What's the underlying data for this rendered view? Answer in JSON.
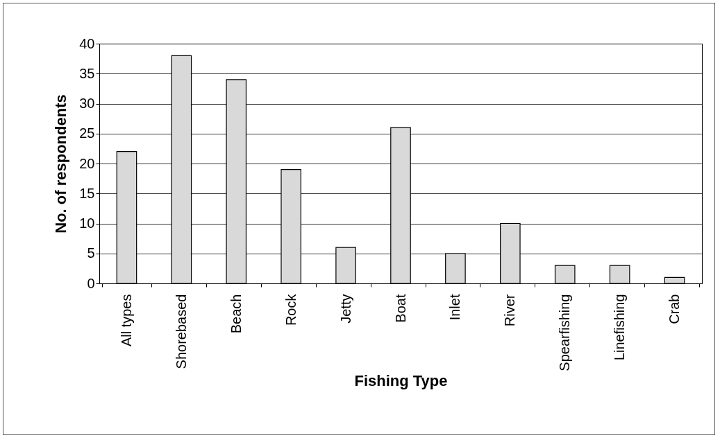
{
  "chart_data": {
    "type": "bar",
    "xlabel": "Fishing Type",
    "ylabel": "No. of respondents",
    "categories": [
      "All types",
      "Shorebased",
      "Beach",
      "Rock",
      "Jetty",
      "Boat",
      "Inlet",
      "River",
      "Spearfishing",
      "Linefishing",
      "Crab"
    ],
    "values": [
      22,
      38,
      34,
      19,
      6,
      26,
      5,
      10,
      3,
      3,
      1
    ],
    "color": "#d9d9d9",
    "ylim": [
      0,
      40
    ],
    "yticks": [
      0,
      5,
      10,
      15,
      20,
      25,
      30,
      35,
      40
    ],
    "grid": "y"
  }
}
